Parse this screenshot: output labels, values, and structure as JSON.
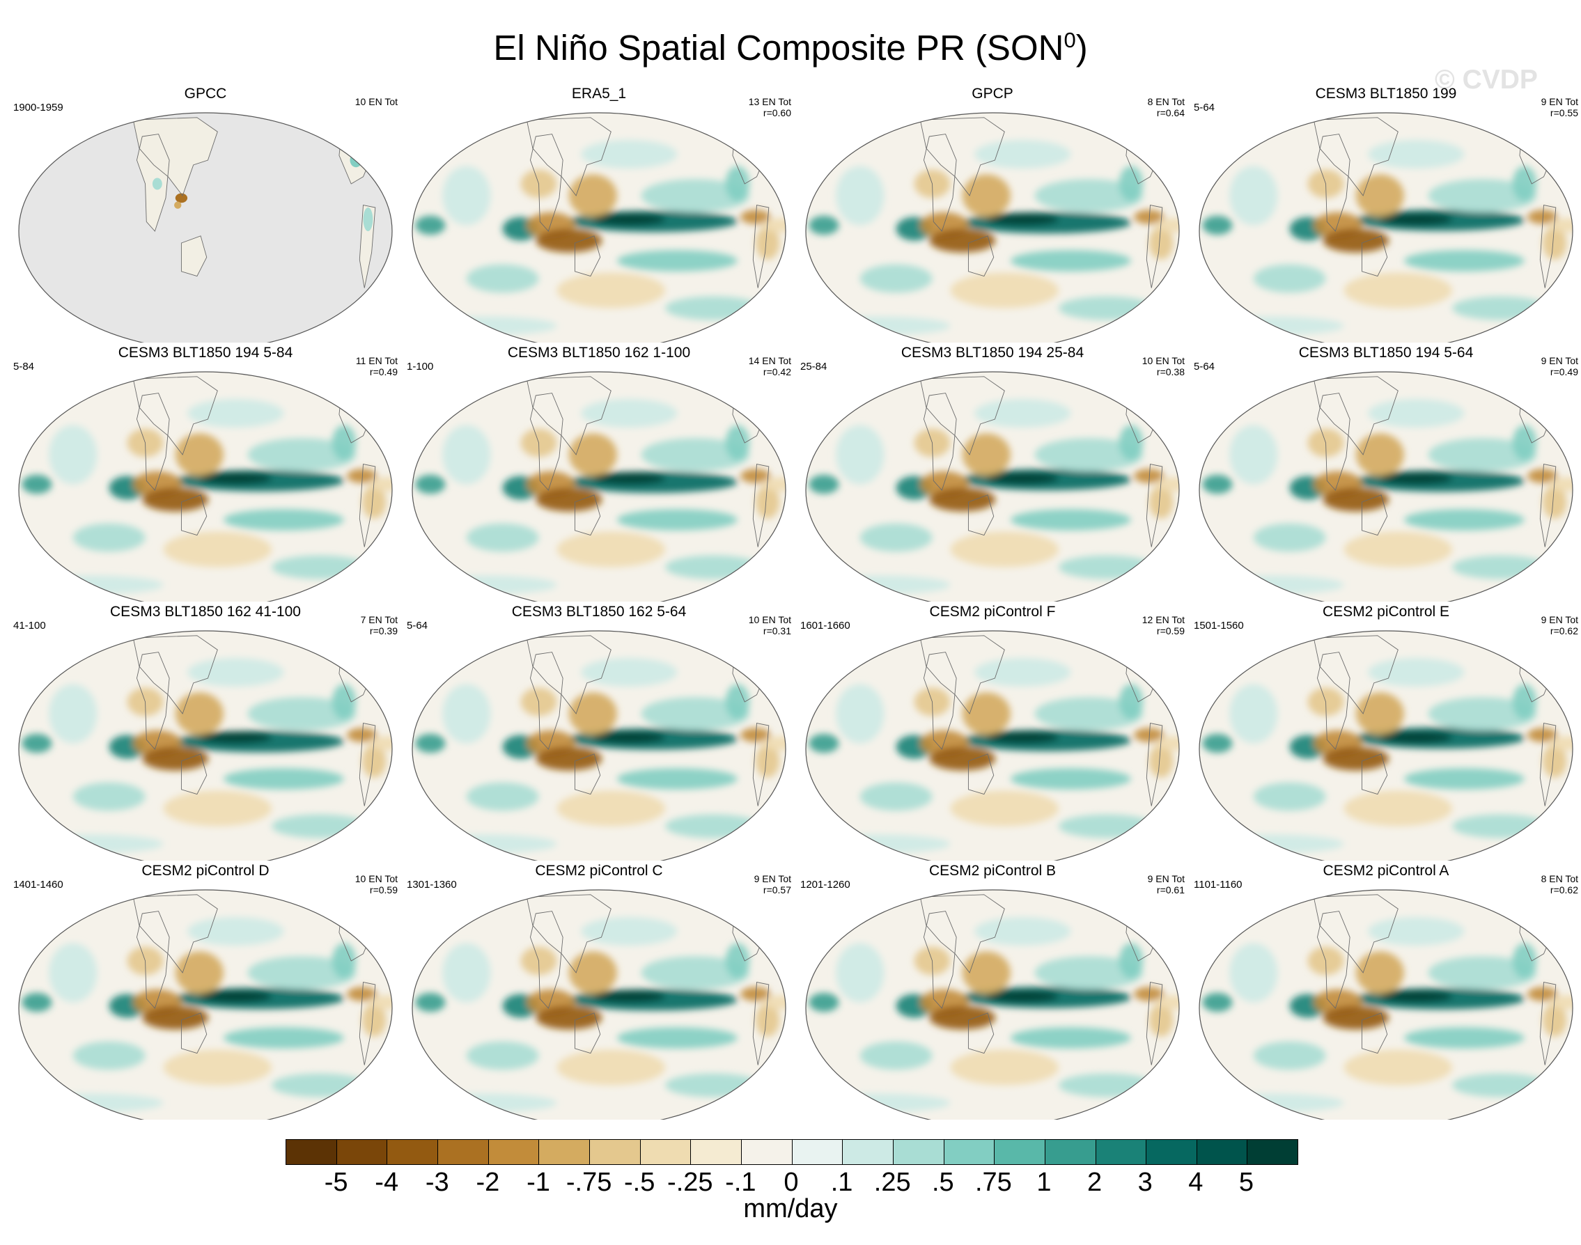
{
  "title": {
    "main": "El Niño Spatial Composite PR (SON",
    "sup": "0",
    "close": ")"
  },
  "watermark": "© CVDP",
  "units": "mm/day",
  "colorbar": {
    "colors": [
      "#5c3305",
      "#7a4609",
      "#935a11",
      "#ab7122",
      "#c28c3a",
      "#d4ab60",
      "#e4c88e",
      "#efdcb1",
      "#f5ebd2",
      "#f5f2ea",
      "#e9f3f1",
      "#cdeae5",
      "#a9ddd4",
      "#82cec2",
      "#59b8a9",
      "#379d8f",
      "#1a8277",
      "#066860",
      "#00544c",
      "#003e34"
    ],
    "labels": [
      "-5",
      "-4",
      "-3",
      "-2",
      "-1",
      "-.75",
      "-.5",
      "-.25",
      "-.1",
      "0",
      ".1",
      ".25",
      ".5",
      ".75",
      "1",
      "2",
      "3",
      "4",
      "5"
    ]
  },
  "chart_data": {
    "type": "heatmap",
    "title": "El Niño Spatial Composite PR (SON0)",
    "projection": "robinson-like global maps, pacific-centered",
    "units": "mm/day",
    "levels": [
      -5,
      -4,
      -3,
      -2,
      -1,
      -0.75,
      -0.5,
      -0.25,
      -0.1,
      0,
      0.1,
      0.25,
      0.5,
      0.75,
      1,
      2,
      3,
      4,
      5
    ],
    "panels": [
      {
        "title": "GPCC",
        "period": "1900-1959",
        "count": "10 EN Tot",
        "r": "",
        "partial": true
      },
      {
        "title": "ERA5_1",
        "period": "",
        "count": "13 EN Tot",
        "r": "r=0.60",
        "partial": false
      },
      {
        "title": "GPCP",
        "period": "",
        "count": "8 EN Tot",
        "r": "r=0.64",
        "partial": false
      },
      {
        "title": "CESM3 BLT1850 199",
        "period": "5-64",
        "count": "9 EN Tot",
        "r": "r=0.55",
        "partial": false
      },
      {
        "title": "CESM3 BLT1850 194 5-84",
        "period": "5-84",
        "count": "11 EN Tot",
        "r": "r=0.49",
        "partial": false
      },
      {
        "title": "CESM3 BLT1850 162 1-100",
        "period": "1-100",
        "count": "14 EN Tot",
        "r": "r=0.42",
        "partial": false
      },
      {
        "title": "CESM3 BLT1850 194 25-84",
        "period": "25-84",
        "count": "10 EN Tot",
        "r": "r=0.38",
        "partial": false
      },
      {
        "title": "CESM3 BLT1850 194 5-64",
        "period": "5-64",
        "count": "9 EN Tot",
        "r": "r=0.49",
        "partial": false
      },
      {
        "title": "CESM3 BLT1850 162 41-100",
        "period": "41-100",
        "count": "7 EN Tot",
        "r": "r=0.39",
        "partial": false
      },
      {
        "title": "CESM3 BLT1850 162 5-64",
        "period": "5-64",
        "count": "10 EN Tot",
        "r": "r=0.31",
        "partial": false
      },
      {
        "title": "CESM2 piControl F",
        "period": "1601-1660",
        "count": "12 EN Tot",
        "r": "r=0.59",
        "partial": false
      },
      {
        "title": "CESM2 piControl E",
        "period": "1501-1560",
        "count": "9 EN Tot",
        "r": "r=0.62",
        "partial": false
      },
      {
        "title": "CESM2 piControl D",
        "period": "1401-1460",
        "count": "10 EN Tot",
        "r": "r=0.59",
        "partial": false
      },
      {
        "title": "CESM2 piControl C",
        "period": "1301-1360",
        "count": "9 EN Tot",
        "r": "r=0.57",
        "partial": false
      },
      {
        "title": "CESM2 piControl B",
        "period": "1201-1260",
        "count": "9 EN Tot",
        "r": "r=0.61",
        "partial": false
      },
      {
        "title": "CESM2 piControl A",
        "period": "1101-1160",
        "count": "8 EN Tot",
        "r": "r=0.62",
        "partial": false
      }
    ]
  }
}
